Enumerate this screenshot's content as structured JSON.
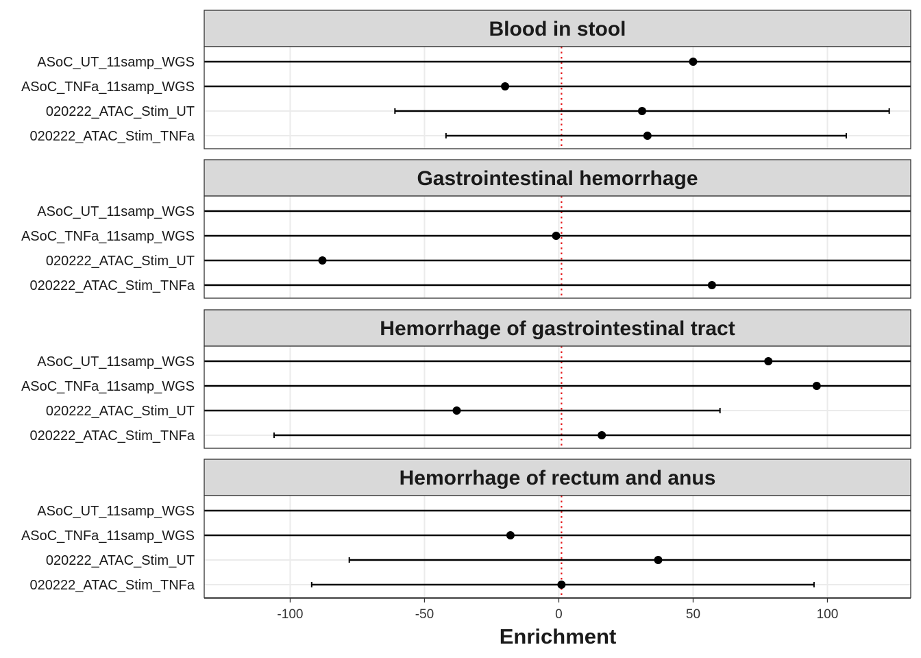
{
  "chart_data": {
    "type": "forest",
    "xlabel": "Enrichment",
    "xlim": [
      -132,
      131
    ],
    "x_ticks": [
      -100,
      -50,
      0,
      50,
      100
    ],
    "x_tick_labels": [
      "-100",
      "-50",
      "0",
      "50",
      "100"
    ],
    "reference_line": {
      "x": 1,
      "style": "dotted",
      "color": "#e41a1c"
    },
    "grid": true,
    "categories": [
      "ASoC_UT_11samp_WGS",
      "ASoC_TNFa_11samp_WGS",
      "020222_ATAC_Stim_UT",
      "020222_ATAC_Stim_TNFa"
    ],
    "panels": [
      {
        "title": "Blood in stool",
        "points": [
          {
            "label": "ASoC_UT_11samp_WGS",
            "x": 50,
            "lo": null,
            "hi": null
          },
          {
            "label": "ASoC_TNFa_11samp_WGS",
            "x": -20,
            "lo": null,
            "hi": null
          },
          {
            "label": "020222_ATAC_Stim_UT",
            "x": 31,
            "lo": -61,
            "hi": 123
          },
          {
            "label": "020222_ATAC_Stim_TNFa",
            "x": 33,
            "lo": -42,
            "hi": 107
          }
        ]
      },
      {
        "title": "Gastrointestinal hemorrhage",
        "points": [
          {
            "label": "ASoC_UT_11samp_WGS",
            "x": null,
            "lo": null,
            "hi": null
          },
          {
            "label": "ASoC_TNFa_11samp_WGS",
            "x": -1,
            "lo": null,
            "hi": null
          },
          {
            "label": "020222_ATAC_Stim_UT",
            "x": -88,
            "lo": null,
            "hi": null
          },
          {
            "label": "020222_ATAC_Stim_TNFa",
            "x": 57,
            "lo": null,
            "hi": null
          }
        ]
      },
      {
        "title": "Hemorrhage of gastrointestinal tract",
        "points": [
          {
            "label": "ASoC_UT_11samp_WGS",
            "x": 78,
            "lo": null,
            "hi": null
          },
          {
            "label": "ASoC_TNFa_11samp_WGS",
            "x": 96,
            "lo": null,
            "hi": null
          },
          {
            "label": "020222_ATAC_Stim_UT",
            "x": -38,
            "lo": null,
            "hi": 60
          },
          {
            "label": "020222_ATAC_Stim_TNFa",
            "x": 16,
            "lo": -106,
            "hi": null
          }
        ]
      },
      {
        "title": "Hemorrhage of rectum and anus",
        "points": [
          {
            "label": "ASoC_UT_11samp_WGS",
            "x": null,
            "lo": null,
            "hi": null
          },
          {
            "label": "ASoC_TNFa_11samp_WGS",
            "x": -18,
            "lo": null,
            "hi": null
          },
          {
            "label": "020222_ATAC_Stim_UT",
            "x": 37,
            "lo": -78,
            "hi": null
          },
          {
            "label": "020222_ATAC_Stim_TNFa",
            "x": 1,
            "lo": -92,
            "hi": 95
          }
        ]
      }
    ]
  }
}
